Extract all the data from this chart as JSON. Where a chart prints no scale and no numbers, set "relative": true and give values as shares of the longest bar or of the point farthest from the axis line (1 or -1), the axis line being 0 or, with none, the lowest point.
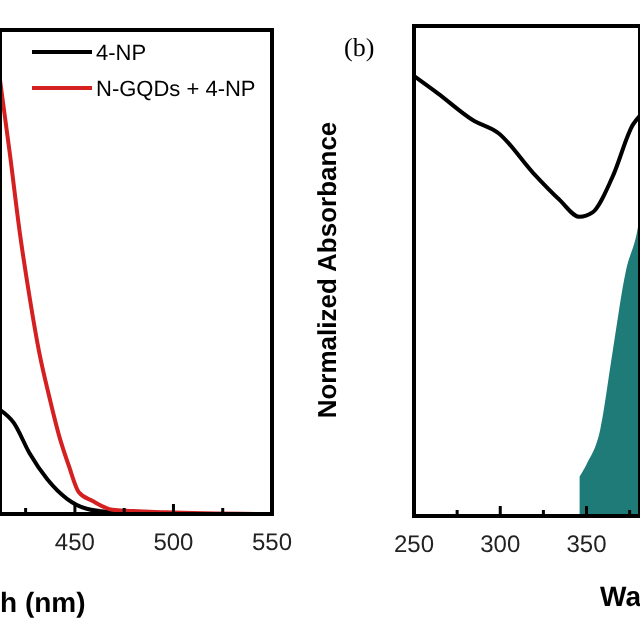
{
  "chart_data": [
    {
      "type": "line",
      "xlabel": "h (nm)",
      "relative": true,
      "xlim": [
        412,
        550
      ],
      "xticks": [
        {
          "value": 425,
          "label": null
        },
        450,
        {
          "value": 475,
          "label": null
        },
        500,
        {
          "value": 525,
          "label": null
        },
        550
      ],
      "tick_labels": "x",
      "legend": "top right",
      "series": [
        {
          "name": "4-NP",
          "color": "#000000",
          "x": [
            412,
            419,
            427,
            436,
            446,
            456,
            469,
            496,
            547
          ],
          "values": [
            0.24,
            0.21,
            0.14,
            0.08,
            0.035,
            0.012,
            0.004,
            0,
            0
          ]
        },
        {
          "name": "N-GQDs + 4-NP",
          "color": "#d42020",
          "x": [
            412,
            417,
            422,
            427,
            432,
            437,
            442,
            447,
            452,
            459,
            469,
            496,
            547
          ],
          "values": [
            1,
            0.83,
            0.65,
            0.5,
            0.37,
            0.27,
            0.18,
            0.11,
            0.05,
            0.03,
            0.01,
            0.004,
            0
          ]
        }
      ]
    },
    {
      "type": "line",
      "ylabel": "Normalized Absorbance",
      "annotations": [
        "(b)"
      ],
      "xlabel": "Wa",
      "relative": true,
      "xlim": [
        250,
        381
      ],
      "xticks": [
        250,
        {
          "value": 275,
          "label": null
        },
        300,
        {
          "value": 325,
          "label": null
        },
        350,
        {
          "value": 375,
          "label": null
        }
      ],
      "tick_labels": "x",
      "series": [
        {
          "color": "#000000",
          "x": [
            250,
            264,
            284,
            299,
            319,
            334,
            346,
            353.5,
            365,
            377,
            381
          ],
          "values": [
            1,
            0.96,
            0.9,
            0.87,
            0.78,
            0.72,
            0.68,
            0.69,
            0.77,
            0.89,
            0.91
          ]
        },
        {
          "type": "area",
          "color": "#1e7b78",
          "x": [
            346,
            350,
            358,
            365,
            373,
            379,
            381
          ],
          "values": [
            0.09,
            0.117,
            0.197,
            0.37,
            0.56,
            0.64,
            0.68
          ]
        }
      ]
    }
  ]
}
